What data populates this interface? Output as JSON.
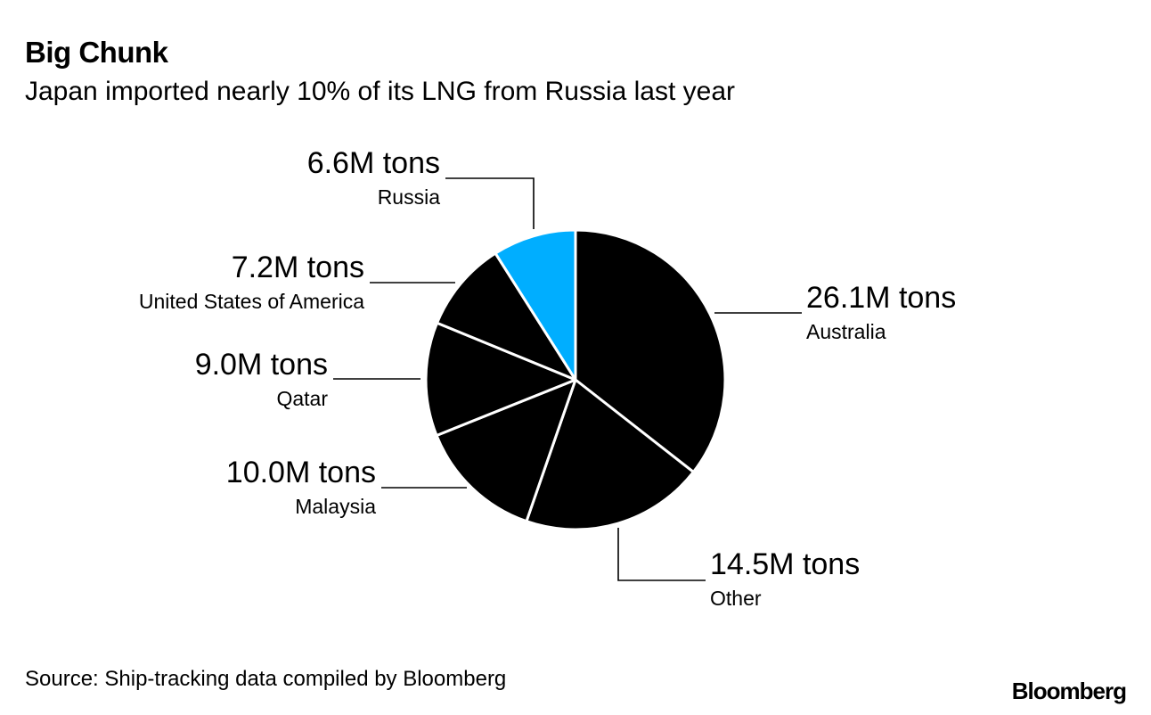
{
  "header": {
    "title": "Big Chunk",
    "subtitle": "Japan imported nearly 10% of its LNG from Russia last year"
  },
  "footer": {
    "source": "Source: Ship-tracking data compiled by Bloomberg",
    "brand": "Bloomberg"
  },
  "colors": {
    "slice": "#000000",
    "highlight": "#00aeff",
    "slice_border": "#ffffff",
    "leader": "#000000"
  },
  "chart_data": {
    "type": "pie",
    "unit": "M tons",
    "slices": [
      {
        "label": "Australia",
        "value": 26.1,
        "value_label": "26.1M tons",
        "highlight": false
      },
      {
        "label": "Other",
        "value": 14.5,
        "value_label": "14.5M tons",
        "highlight": false
      },
      {
        "label": "Malaysia",
        "value": 10.0,
        "value_label": "10.0M tons",
        "highlight": false
      },
      {
        "label": "Qatar",
        "value": 9.0,
        "value_label": "9.0M tons",
        "highlight": false
      },
      {
        "label": "United States of America",
        "value": 7.2,
        "value_label": "7.2M tons",
        "highlight": false
      },
      {
        "label": "Russia",
        "value": 6.6,
        "value_label": "6.6M tons",
        "highlight": true
      }
    ]
  }
}
